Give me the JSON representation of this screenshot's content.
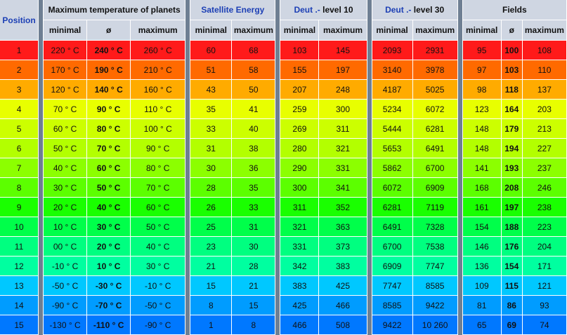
{
  "headers": {
    "position": "Position",
    "temperature": "Maximum temperature of planets",
    "satellite": "Satellite Energy",
    "deut10_a": "Deut .-",
    "deut10_b": " level 10",
    "deut30_a": "Deut .-",
    "deut30_b": " level 30",
    "fields": "Fields",
    "minimal": "minimal",
    "avg": "ø",
    "maximum": "maximum"
  },
  "row_colors": [
    "#ff1a1a",
    "#ff6a00",
    "#ffab00",
    "#e8ff00",
    "#ccff00",
    "#b3ff00",
    "#8cff00",
    "#5cff00",
    "#1aff00",
    "#00ff4a",
    "#00ff80",
    "#00ffa0",
    "#00c8ff",
    "#009cff",
    "#0078ff"
  ],
  "rows": [
    {
      "pos": "1",
      "tmin": "220 ° C",
      "tavg": "240 ° C",
      "tmax": "260 ° C",
      "smin": "60",
      "smax": "68",
      "d10min": "103",
      "d10max": "145",
      "d30min": "2093",
      "d30max": "2931",
      "fmin": "95",
      "favg": "100",
      "fmax": "108"
    },
    {
      "pos": "2",
      "tmin": "170 ° C",
      "tavg": "190 ° C",
      "tmax": "210 ° C",
      "smin": "51",
      "smax": "58",
      "d10min": "155",
      "d10max": "197",
      "d30min": "3140",
      "d30max": "3978",
      "fmin": "97",
      "favg": "103",
      "fmax": "110"
    },
    {
      "pos": "3",
      "tmin": "120 ° C",
      "tavg": "140 ° C",
      "tmax": "160 ° C",
      "smin": "43",
      "smax": "50",
      "d10min": "207",
      "d10max": "248",
      "d30min": "4187",
      "d30max": "5025",
      "fmin": "98",
      "favg": "118",
      "fmax": "137"
    },
    {
      "pos": "4",
      "tmin": "70 ° C",
      "tavg": "90 ° C",
      "tmax": "110 ° C",
      "smin": "35",
      "smax": "41",
      "d10min": "259",
      "d10max": "300",
      "d30min": "5234",
      "d30max": "6072",
      "fmin": "123",
      "favg": "164",
      "fmax": "203"
    },
    {
      "pos": "5",
      "tmin": "60 ° C",
      "tavg": "80 ° C",
      "tmax": "100 ° C",
      "smin": "33",
      "smax": "40",
      "d10min": "269",
      "d10max": "311",
      "d30min": "5444",
      "d30max": "6281",
      "fmin": "148",
      "favg": "179",
      "fmax": "213"
    },
    {
      "pos": "6",
      "tmin": "50 ° C",
      "tavg": "70 ° C",
      "tmax": "90 ° C",
      "smin": "31",
      "smax": "38",
      "d10min": "280",
      "d10max": "321",
      "d30min": "5653",
      "d30max": "6491",
      "fmin": "148",
      "favg": "194",
      "fmax": "227"
    },
    {
      "pos": "7",
      "tmin": "40 ° C",
      "tavg": "60 ° C",
      "tmax": "80 ° C",
      "smin": "30",
      "smax": "36",
      "d10min": "290",
      "d10max": "331",
      "d30min": "5862",
      "d30max": "6700",
      "fmin": "141",
      "favg": "193",
      "fmax": "237"
    },
    {
      "pos": "8",
      "tmin": "30 ° C",
      "tavg": "50 ° C",
      "tmax": "70 ° C",
      "smin": "28",
      "smax": "35",
      "d10min": "300",
      "d10max": "341",
      "d30min": "6072",
      "d30max": "6909",
      "fmin": "168",
      "favg": "208",
      "fmax": "246"
    },
    {
      "pos": "9",
      "tmin": "20 ° C",
      "tavg": "40 ° C",
      "tmax": "60 ° C",
      "smin": "26",
      "smax": "33",
      "d10min": "311",
      "d10max": "352",
      "d30min": "6281",
      "d30max": "7119",
      "fmin": "161",
      "favg": "197",
      "fmax": "238"
    },
    {
      "pos": "10",
      "tmin": "10 ° C",
      "tavg": "30 ° C",
      "tmax": "50 ° C",
      "smin": "25",
      "smax": "31",
      "d10min": "321",
      "d10max": "363",
      "d30min": "6491",
      "d30max": "7328",
      "fmin": "154",
      "favg": "188",
      "fmax": "223"
    },
    {
      "pos": "11",
      "tmin": "00 ° C",
      "tavg": "20 ° C",
      "tmax": "40 ° C",
      "smin": "23",
      "smax": "30",
      "d10min": "331",
      "d10max": "373",
      "d30min": "6700",
      "d30max": "7538",
      "fmin": "146",
      "favg": "176",
      "fmax": "204"
    },
    {
      "pos": "12",
      "tmin": "-10 ° C",
      "tavg": "10 ° C",
      "tmax": "30 ° C",
      "smin": "21",
      "smax": "28",
      "d10min": "342",
      "d10max": "383",
      "d30min": "6909",
      "d30max": "7747",
      "fmin": "136",
      "favg": "154",
      "fmax": "171"
    },
    {
      "pos": "13",
      "tmin": "-50 ° C",
      "tavg": "-30 ° C",
      "tmax": "-10 ° C",
      "smin": "15",
      "smax": "21",
      "d10min": "383",
      "d10max": "425",
      "d30min": "7747",
      "d30max": "8585",
      "fmin": "109",
      "favg": "115",
      "fmax": "121"
    },
    {
      "pos": "14",
      "tmin": "-90 ° C",
      "tavg": "-70 ° C",
      "tmax": "-50 ° C",
      "smin": "8",
      "smax": "15",
      "d10min": "425",
      "d10max": "466",
      "d30min": "8585",
      "d30max": "9422",
      "fmin": "81",
      "favg": "86",
      "fmax": "93"
    },
    {
      "pos": "15",
      "tmin": "-130 ° C",
      "tavg": "-110 ° C",
      "tmax": "-90 ° C",
      "smin": "1",
      "smax": "8",
      "d10min": "466",
      "d10max": "508",
      "d30min": "9422",
      "d30max": "10 260",
      "fmin": "65",
      "favg": "69",
      "fmax": "74"
    }
  ]
}
